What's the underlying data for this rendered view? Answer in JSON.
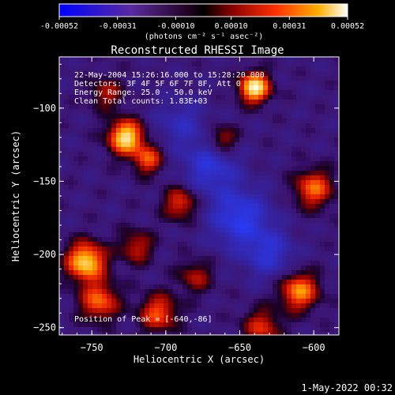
{
  "chart_data": {
    "type": "heatmap",
    "title": "Reconstructed RHESSI Image",
    "xlabel": "Heliocentric X (arcsec)",
    "ylabel": "Heliocentric Y (arcsec)",
    "xlim": [
      -772,
      -583
    ],
    "ylim": [
      -255,
      -65
    ],
    "xticks": [
      -750,
      -700,
      -650,
      -600
    ],
    "yticks": [
      -100,
      -150,
      -200,
      -250
    ],
    "colorbar": {
      "min": -0.00052,
      "max": 0.00052,
      "ticks": [
        "-0.00052",
        "-0.00031",
        "-0.00010",
        "0.00010",
        "0.00031",
        "0.00052"
      ],
      "label": "(photons cm⁻² s⁻¹ asec⁻²)"
    },
    "annotations": [
      "22-May-2004 15:26:16.000 to 15:28:20.000",
      "Detectors: 3F 4F 5F 6F 7F 8F, Att 0",
      "Energy Range: 25.0 - 50.0 keV",
      "Clean     Total counts: 1.83E+03"
    ],
    "peak_text": "Position of Peak = [-640,-86]",
    "peak_position": [
      -640,
      -86
    ],
    "sources": [
      {
        "x": -640,
        "y": -86,
        "amp": 1.0,
        "sigma": 7
      },
      {
        "x": -727,
        "y": -120,
        "amp": 0.95,
        "sigma": 8
      },
      {
        "x": -754,
        "y": -205,
        "amp": 0.9,
        "sigma": 9
      },
      {
        "x": -712,
        "y": -135,
        "amp": 0.55,
        "sigma": 7
      },
      {
        "x": -745,
        "y": -232,
        "amp": 0.6,
        "sigma": 9
      },
      {
        "x": -690,
        "y": -165,
        "amp": 0.5,
        "sigma": 8
      },
      {
        "x": -662,
        "y": -122,
        "amp": 0.45,
        "sigma": 7
      },
      {
        "x": -600,
        "y": -155,
        "amp": 0.6,
        "sigma": 9
      },
      {
        "x": -610,
        "y": -225,
        "amp": 0.7,
        "sigma": 9
      },
      {
        "x": -705,
        "y": -240,
        "amp": 0.55,
        "sigma": 9
      },
      {
        "x": -635,
        "y": -250,
        "amp": 0.45,
        "sigma": 9
      },
      {
        "x": -740,
        "y": -90,
        "amp": 0.35,
        "sigma": 8
      },
      {
        "x": -720,
        "y": -195,
        "amp": 0.4,
        "sigma": 8
      },
      {
        "x": -680,
        "y": -215,
        "amp": 0.35,
        "sigma": 8
      },
      {
        "x": -650,
        "y": -175,
        "amp": -0.55,
        "sigma": 14
      },
      {
        "x": -670,
        "y": -140,
        "amp": -0.45,
        "sigma": 13
      },
      {
        "x": -630,
        "y": -200,
        "amp": -0.4,
        "sigma": 12
      },
      {
        "x": -690,
        "y": -110,
        "amp": -0.3,
        "sigma": 12
      }
    ]
  },
  "footer": {
    "timestamp": "1-May-2022 00:32"
  }
}
